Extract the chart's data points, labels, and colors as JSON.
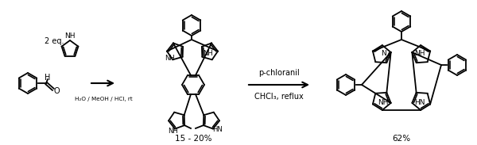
{
  "background_color": "#ffffff",
  "text_color": "#000000",
  "fig_width": 6.0,
  "fig_height": 1.83,
  "dpi": 100,
  "label_2eq": "2 eq.",
  "label_conditions1": "H₂O / MeOH / HCl, rt",
  "label_yield1": "15 - 20%",
  "label_reagent2": "p-chloranil",
  "label_conditions2": "CHCl₃, reflux",
  "label_yield2": "62%"
}
